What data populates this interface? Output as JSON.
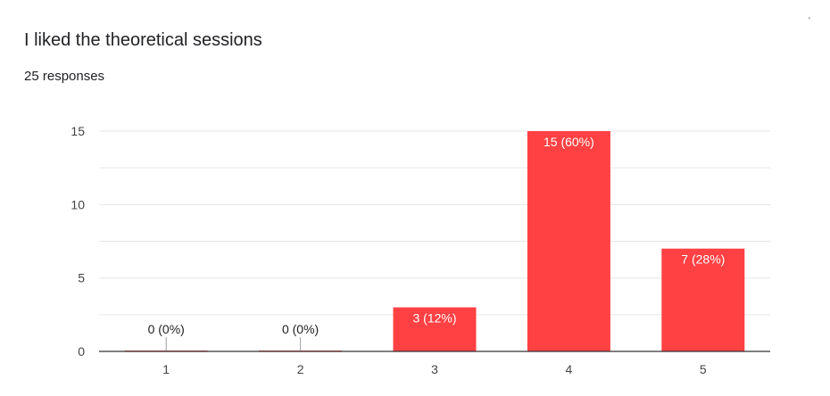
{
  "header": {
    "title": "I liked the theoretical sessions",
    "responses": "25 responses"
  },
  "colors": {
    "bar": "#ff4143",
    "grid": "#e6e6e6",
    "axis": "#333333",
    "zero_stem": "#9e9e9e"
  },
  "chart_data": {
    "type": "bar",
    "title": "I liked the theoretical sessions",
    "categories": [
      "1",
      "2",
      "3",
      "4",
      "5"
    ],
    "values": [
      0,
      0,
      3,
      15,
      7
    ],
    "data_labels": [
      "0 (0%)",
      "0 (0%)",
      "3 (12%)",
      "15 (60%)",
      "7 (28%)"
    ],
    "xlabel": "",
    "ylabel": "",
    "ylim": [
      0,
      15
    ],
    "yticks": [
      "0",
      "5",
      "10",
      "15"
    ],
    "ytick_values": [
      0,
      5,
      10,
      15
    ],
    "minor_grid_step": 2.5,
    "grid": true,
    "legend": "none"
  }
}
